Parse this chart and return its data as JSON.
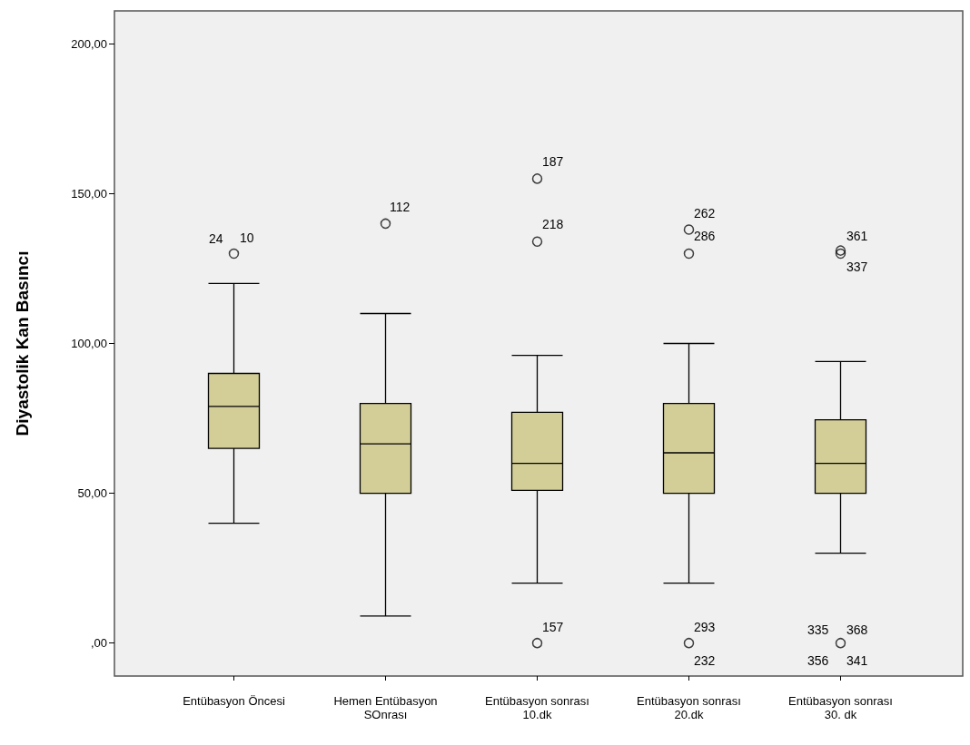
{
  "chart_data": {
    "type": "box",
    "ylabel": "Diyastolik Kan Basıncı",
    "categories": [
      "Entübasyon Öncesi",
      "Hemen Entübasyon\nSOnrası",
      "Entübasyon sonrası\n10.dk",
      "Entübasyon sonrası\n20.dk",
      "Entübasyon sonrası\n30. dk"
    ],
    "color": "#d3ce98",
    "boxes": [
      {
        "low": 40,
        "q1": 65,
        "median": 79,
        "q3": 90,
        "high": 120,
        "outliers": [
          130
        ]
      },
      {
        "low": 9,
        "q1": 50,
        "median": 66.5,
        "q3": 80,
        "high": 110,
        "outliers": [
          140
        ]
      },
      {
        "low": 20,
        "q1": 51,
        "median": 60,
        "q3": 77,
        "high": 96,
        "outliers": [
          155,
          134,
          0
        ]
      },
      {
        "low": 20,
        "q1": 50,
        "median": 63.5,
        "q3": 80,
        "high": 100,
        "outliers": [
          138,
          130,
          0
        ]
      },
      {
        "low": 30,
        "q1": 50,
        "median": 60,
        "q3": 74.5,
        "high": 94,
        "outliers": [
          131,
          130,
          0
        ]
      }
    ],
    "ylim": [
      -11,
      211
    ],
    "yticks": [
      {
        "value": 0,
        "label": ",00"
      },
      {
        "value": 50,
        "label": "50,00"
      },
      {
        "value": 100,
        "label": "100,00"
      },
      {
        "value": 150,
        "label": "150,00"
      },
      {
        "value": 200,
        "label": "200,00"
      }
    ],
    "grid": false,
    "marker": "circle",
    "annotations": [
      "24",
      "10",
      "112",
      "187",
      "218",
      "157",
      "262",
      "286",
      "293",
      "232",
      "361",
      "337",
      "335",
      "368",
      "356",
      "341"
    ]
  }
}
